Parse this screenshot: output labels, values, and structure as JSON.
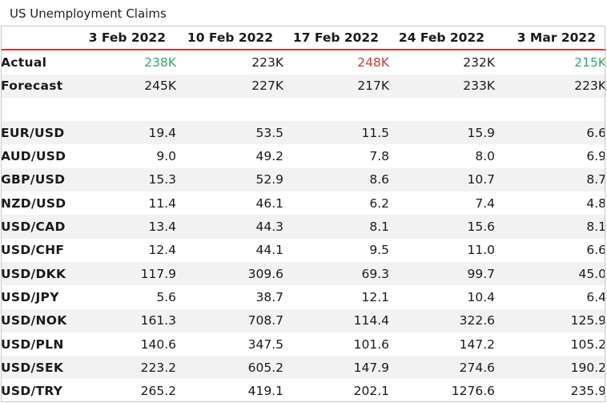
{
  "title": "US Unemployment Claims",
  "colors": {
    "beat": "#3aa36a",
    "miss": "#cc3b3b",
    "text": "#1a1a1a",
    "header_rule": "#d03a3a",
    "stripe": "#f2f2f2"
  },
  "chart_data": {
    "type": "table",
    "title": "US Unemployment Claims",
    "columns": [
      "3 Feb 2022",
      "10 Feb 2022",
      "17 Feb 2022",
      "24 Feb 2022",
      "3 Mar 2022"
    ],
    "claims": [
      {
        "label": "Actual",
        "values": [
          "238K",
          "223K",
          "248K",
          "232K",
          "215K"
        ],
        "colors": [
          "#3aa36a",
          null,
          "#cc3b3b",
          null,
          "#3aa36a"
        ]
      },
      {
        "label": "Forecast",
        "values": [
          "245K",
          "227K",
          "217K",
          "233K",
          "223K"
        ]
      }
    ],
    "pairs": [
      {
        "label": "EUR/USD",
        "values": [
          "19.4",
          "53.5",
          "11.5",
          "15.9",
          "6.6"
        ]
      },
      {
        "label": "AUD/USD",
        "values": [
          "9.0",
          "49.2",
          "7.8",
          "8.0",
          "6.9"
        ]
      },
      {
        "label": "GBP/USD",
        "values": [
          "15.3",
          "52.9",
          "8.6",
          "10.7",
          "8.7"
        ]
      },
      {
        "label": "NZD/USD",
        "values": [
          "11.4",
          "46.1",
          "6.2",
          "7.4",
          "4.8"
        ]
      },
      {
        "label": "USD/CAD",
        "values": [
          "13.4",
          "44.3",
          "8.1",
          "15.6",
          "8.1"
        ]
      },
      {
        "label": "USD/CHF",
        "values": [
          "12.4",
          "44.1",
          "9.5",
          "11.0",
          "6.6"
        ]
      },
      {
        "label": "USD/DKK",
        "values": [
          "117.9",
          "309.6",
          "69.3",
          "99.7",
          "45.0"
        ]
      },
      {
        "label": "USD/JPY",
        "values": [
          "5.6",
          "38.7",
          "12.1",
          "10.4",
          "6.4"
        ]
      },
      {
        "label": "USD/NOK",
        "values": [
          "161.3",
          "708.7",
          "114.4",
          "322.6",
          "125.9"
        ]
      },
      {
        "label": "USD/PLN",
        "values": [
          "140.6",
          "347.5",
          "101.6",
          "147.2",
          "105.2"
        ]
      },
      {
        "label": "USD/SEK",
        "values": [
          "223.2",
          "605.2",
          "147.9",
          "274.6",
          "190.2"
        ]
      },
      {
        "label": "USD/TRY",
        "values": [
          "265.2",
          "419.1",
          "202.1",
          "1276.6",
          "235.9"
        ]
      }
    ]
  }
}
